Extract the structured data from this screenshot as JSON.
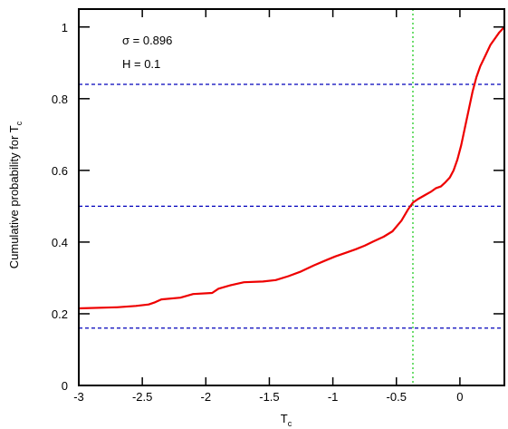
{
  "chart_data": {
    "type": "line",
    "xlabel": "T",
    "xlabel_sub": "c",
    "ylabel": "Cumulative probability for T",
    "ylabel_sub": "c",
    "xlim": [
      -3,
      0.35
    ],
    "ylim": [
      0,
      1.05
    ],
    "xticks": [
      -3,
      -2.5,
      -2,
      -1.5,
      -1,
      -0.5,
      0
    ],
    "xtick_labels": [
      "-3",
      "-2.5",
      "-2",
      "-1.5",
      "-1",
      "-0.5",
      "0"
    ],
    "yticks": [
      0,
      0.2,
      0.4,
      0.6,
      0.8,
      1
    ],
    "ytick_labels": [
      "0",
      "0.2",
      "0.4",
      "0.6",
      "0.8",
      "1"
    ],
    "grid": false,
    "annotations": [
      "σ = 0.896",
      "H = 0.1"
    ],
    "series": [
      {
        "color": "#ee0000",
        "x": [
          -3.0,
          -2.7,
          -2.55,
          -2.45,
          -2.4,
          -2.35,
          -2.2,
          -2.1,
          -1.95,
          -1.9,
          -1.8,
          -1.7,
          -1.55,
          -1.45,
          -1.35,
          -1.25,
          -1.15,
          -1.05,
          -0.98,
          -0.9,
          -0.82,
          -0.75,
          -0.68,
          -0.6,
          -0.53,
          -0.46,
          -0.41,
          -0.37,
          -0.33,
          -0.28,
          -0.23,
          -0.19,
          -0.15,
          -0.12,
          -0.08,
          -0.05,
          -0.02,
          0.01,
          0.04,
          0.07,
          0.1,
          0.13,
          0.16,
          0.2,
          0.24,
          0.28,
          0.31,
          0.35
        ],
        "y": [
          0.215,
          0.218,
          0.222,
          0.226,
          0.232,
          0.24,
          0.245,
          0.255,
          0.258,
          0.27,
          0.28,
          0.288,
          0.29,
          0.294,
          0.305,
          0.318,
          0.335,
          0.35,
          0.36,
          0.37,
          0.38,
          0.39,
          0.402,
          0.415,
          0.43,
          0.46,
          0.49,
          0.51,
          0.52,
          0.53,
          0.54,
          0.55,
          0.555,
          0.565,
          0.58,
          0.6,
          0.63,
          0.67,
          0.72,
          0.77,
          0.82,
          0.86,
          0.89,
          0.92,
          0.95,
          0.97,
          0.985,
          1.0
        ]
      }
    ],
    "hlines": [
      {
        "y": 0.84,
        "color": "#0000bb",
        "style": "dashed"
      },
      {
        "y": 0.5,
        "color": "#0000bb",
        "style": "dashed"
      },
      {
        "y": 0.16,
        "color": "#0000bb",
        "style": "dashed"
      }
    ],
    "vlines": [
      {
        "x": -0.37,
        "color": "#22cc22",
        "style": "dotted"
      }
    ]
  }
}
